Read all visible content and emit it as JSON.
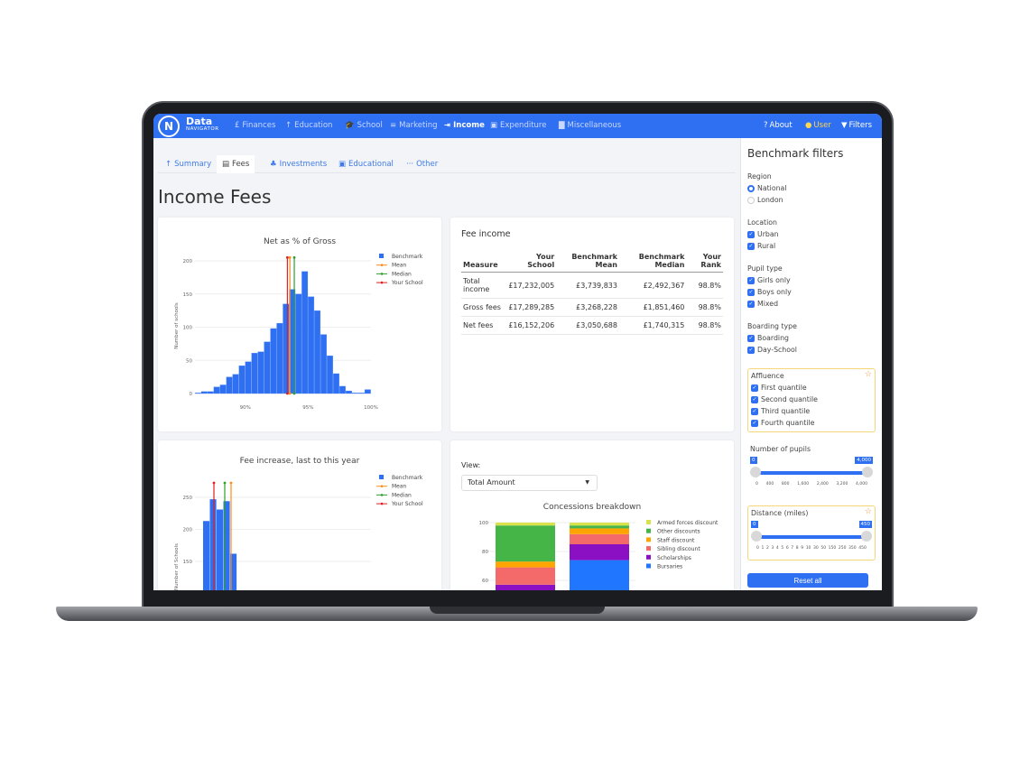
{
  "nav": {
    "brand": "Data",
    "brand_sub": "NAVIGATOR",
    "logo": "N",
    "items": [
      {
        "label": "Finances",
        "icon": "pound-icon"
      },
      {
        "label": "Education",
        "icon": "arrow-up-icon"
      },
      {
        "label": "School",
        "icon": "graduation-cap-icon"
      },
      {
        "label": "Marketing",
        "icon": "filter-lines-icon"
      },
      {
        "label": "Income",
        "icon": "sign-in-icon",
        "active": true
      },
      {
        "label": "Expenditure",
        "icon": "money-icon"
      },
      {
        "label": "Miscellaneous",
        "icon": "briefcase-icon"
      }
    ],
    "right": [
      {
        "label": "About",
        "icon": "question-circle-icon"
      },
      {
        "label": "User",
        "icon": "user-circle-icon"
      },
      {
        "label": "Filters",
        "icon": "funnel-icon"
      }
    ]
  },
  "tabs": [
    {
      "label": "Summary",
      "icon": "↑"
    },
    {
      "label": "Fees",
      "icon": "▤",
      "active": true
    },
    {
      "label": "Investments",
      "icon": "♣"
    },
    {
      "label": "Educational",
      "icon": "▣"
    },
    {
      "label": "Other",
      "icon": "···"
    }
  ],
  "page_title": "Income Fees",
  "colors": {
    "accent": "#2f6ff2",
    "mean": "#ff8c1a",
    "median": "#2ca02c",
    "your_school": "#e02020"
  },
  "fee_income": {
    "title": "Fee income",
    "headers": [
      "Measure",
      "Your School",
      "Benchmark Mean",
      "Benchmark Median",
      "Your Rank"
    ],
    "rows": [
      [
        "Total income",
        "£17,232,005",
        "£3,739,833",
        "£2,492,367",
        "98.8%"
      ],
      [
        "Gross fees",
        "£17,289,285",
        "£3,268,228",
        "£1,851,460",
        "98.8%"
      ],
      [
        "Net fees",
        "£16,152,206",
        "£3,050,688",
        "£1,740,315",
        "98.8%"
      ]
    ]
  },
  "view": {
    "label": "View:",
    "value": "Total Amount"
  },
  "chart_data": [
    {
      "type": "bar",
      "title": "Net as % of Gross",
      "xlabel": "",
      "ylabel": "Number of schools",
      "xlim": [
        86,
        100
      ],
      "ylim": [
        0,
        215
      ],
      "xticks": [
        "90%",
        "95%",
        "100%"
      ],
      "yticks": [
        "0",
        "50",
        "100",
        "150",
        "200"
      ],
      "bin_width": 0.5,
      "bin_start": 86,
      "values": [
        1,
        3,
        3,
        10,
        13,
        25,
        29,
        42,
        48,
        61,
        63,
        78,
        98,
        106,
        135,
        157,
        150,
        184,
        146,
        125,
        89,
        57,
        30,
        11,
        4,
        1,
        1,
        6
      ],
      "lines": {
        "Mean": 93.55,
        "Median": 93.9,
        "Your School": 93.35
      },
      "legend": [
        "Benchmark",
        "Mean",
        "Median",
        "Your School"
      ],
      "legend_position": "right",
      "grid": true
    },
    {
      "type": "bar",
      "title": "Fee increase, last to this year",
      "ylabel": "Number of Schools",
      "yticks": [
        "150",
        "200",
        "250"
      ],
      "values": [
        213,
        247,
        231,
        244,
        162
      ],
      "legend": [
        "Benchmark",
        "Mean",
        "Median",
        "Your School"
      ],
      "legend_position": "right",
      "grid": true
    },
    {
      "type": "bar",
      "stacked": true,
      "title": "Concessions breakdown",
      "ylim": [
        0,
        100
      ],
      "yticks": [
        "60",
        "80",
        "100"
      ],
      "series": [
        {
          "name": "Bursaries",
          "color": "#2176ff",
          "values": [
            44,
            74
          ]
        },
        {
          "name": "Scholarships",
          "color": "#8b10c4",
          "values": [
            13,
            11
          ]
        },
        {
          "name": "Sibling discount",
          "color": "#f46a6a",
          "values": [
            12,
            7
          ]
        },
        {
          "name": "Staff discount",
          "color": "#ffa500",
          "values": [
            4,
            4
          ]
        },
        {
          "name": "Other discounts",
          "color": "#45b548",
          "values": [
            25,
            2
          ]
        },
        {
          "name": "Armed forces discount",
          "color": "#d9e24a",
          "values": [
            2,
            2
          ]
        }
      ],
      "legend_position": "right"
    }
  ],
  "filters": {
    "title": "Benchmark filters",
    "region": {
      "label": "Region",
      "options": [
        {
          "label": "National",
          "selected": true
        },
        {
          "label": "London",
          "selected": false
        }
      ]
    },
    "location": {
      "label": "Location",
      "options": [
        "Urban",
        "Rural"
      ]
    },
    "pupil_type": {
      "label": "Pupil type",
      "options": [
        "Girls only",
        "Boys only",
        "Mixed"
      ]
    },
    "boarding": {
      "label": "Boarding type",
      "options": [
        "Boarding",
        "Day-School"
      ]
    },
    "affluence": {
      "label": "Affluence",
      "options": [
        "First quantile",
        "Second quantile",
        "Third quantile",
        "Fourth quantile"
      ]
    },
    "pupils": {
      "label": "Number of pupils",
      "min": "0",
      "max": "4,000",
      "ticks": [
        "0",
        "400",
        "800",
        "1,600",
        "2,400",
        "3,200",
        "4,000"
      ]
    },
    "distance": {
      "label": "Distance (miles)",
      "min": "0",
      "max": "450",
      "ticks": [
        "0",
        "1",
        "2",
        "3",
        "4",
        "5",
        "6",
        "7",
        "8",
        "9",
        "10",
        "30",
        "50",
        "150",
        "250",
        "350",
        "450"
      ]
    },
    "reset": "Reset all"
  }
}
